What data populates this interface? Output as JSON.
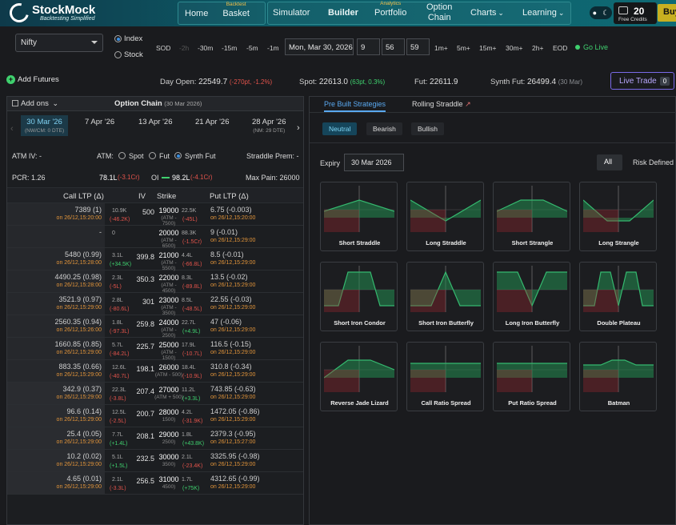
{
  "nav": {
    "brand": "StockMock",
    "tagline": "Backtesting Simplified",
    "home": "Home",
    "basket": "Basket",
    "basket_sup": "Backtest",
    "simulator": "Simulator",
    "builder": "Builder",
    "portfolio": "Portfolio",
    "portfolio_sup": "Analytics",
    "option_chain_1": "Option",
    "option_chain_2": "Chain",
    "charts": "Charts",
    "learning": "Learning",
    "credits_num": "20",
    "credits_label": "Free Credits",
    "buy": "Buy"
  },
  "controls": {
    "instrument": "Nifty",
    "index": "Index",
    "stock": "Stock",
    "sod": "SOD",
    "m2h": "-2h",
    "m30": "-30m",
    "m15": "-15m",
    "m5": "-5m",
    "m1": "-1m",
    "date": "Mon, Mar 30, 2026",
    "hh": "9",
    "mm": "56",
    "ss": "59",
    "p1": "1m+",
    "p5": "5m+",
    "p15": "15m+",
    "p30": "30m+",
    "p2h": "2h+",
    "eod": "EOD",
    "golive": "Go Live"
  },
  "info": {
    "add_futures": "Add Futures",
    "day_open_k": "Day Open:",
    "day_open_v": "22549.7",
    "day_open_c": "(-270pt, -1.2%)",
    "spot_k": "Spot:",
    "spot_v": "22613.0",
    "spot_c": "(63pt, 0.3%)",
    "fut_k": "Fut:",
    "fut_v": "22611.9",
    "synth_k": "Synth Fut:",
    "synth_v": "26499.4",
    "synth_c": "(30 Mar)",
    "live_trade": "Live Trade",
    "live_count": "0"
  },
  "chain": {
    "add_ons": "Add ons",
    "title": "Option Chain",
    "title_date": "(30 Mar 2026)",
    "expiries": [
      {
        "label": "30 Mar '26",
        "sub": "(NW/CM: 0 DTE)"
      },
      {
        "label": "7 Apr '26",
        "sub": ""
      },
      {
        "label": "13 Apr '26",
        "sub": ""
      },
      {
        "label": "21 Apr '26",
        "sub": ""
      },
      {
        "label": "28 Apr '26",
        "sub": "(NM: 29 DTE)"
      }
    ],
    "atm_iv": "ATM IV: -",
    "atm": "ATM:",
    "spot": "Spot",
    "fut": "Fut",
    "synth": "Synth Fut",
    "straddle": "Straddle Prem: -",
    "pcr": "PCR: 1.26",
    "oi_call": "78.1L",
    "oi_call_c": "(-3.1Cr)",
    "oi_lbl": "OI",
    "oi_put": "98.2L",
    "oi_put_c": "(-4.1Cr)",
    "maxpain": "Max Pain: 26000",
    "h_call": "Call LTP (Δ)",
    "h_iv": "IV",
    "h_strike": "Strike",
    "h_put": "Put LTP (Δ)",
    "rows": [
      {
        "call": "7389 (1)",
        "ct": "on 26/12,15:20:00",
        "coi": "10.9K",
        "coic": "(-46.2K)",
        "iv": "500",
        "strike": "19000",
        "ssub": "(ATM - 7500)",
        "poi": "22.5K",
        "poic": "(-45L)",
        "put": "6.75 (-0.003)",
        "pt": "on 26/12,15:20:00"
      },
      {
        "call": "-",
        "ct": "",
        "coi": "0",
        "coic": "",
        "iv": "",
        "strike": "20000",
        "ssub": "(ATM - 6500)",
        "poi": "88.3K",
        "poic": "(-1.5Cr)",
        "put": "9 (-0.01)",
        "pt": "on 26/12,15:29:00"
      },
      {
        "call": "5480 (0.99)",
        "ct": "on 26/12,15:28:00",
        "coi": "3.1L",
        "coic": "(+34.5K)",
        "iv": "399.8",
        "strike": "21000",
        "ssub": "(ATM - 5500)",
        "poi": "4.4L",
        "poic": "(-66.8L)",
        "put": "8.5 (-0.01)",
        "pt": "on 26/12,15:29:00"
      },
      {
        "call": "4490.25 (0.98)",
        "ct": "on 26/12,15:28:00",
        "coi": "2.3L",
        "coic": "(-5L)",
        "iv": "350.3",
        "strike": "22000",
        "ssub": "(ATM - 4500)",
        "poi": "8.3L",
        "poic": "(-89.8L)",
        "put": "13.5 (-0.02)",
        "pt": "on 26/12,15:29:00"
      },
      {
        "call": "3521.9 (0.97)",
        "ct": "on 26/12,15:29:00",
        "coi": "2.8L",
        "coic": "(-80.6L)",
        "iv": "301",
        "strike": "23000",
        "ssub": "(ATM - 3500)",
        "poi": "8.5L",
        "poic": "(-48.5L)",
        "put": "22.55 (-0.03)",
        "pt": "on 26/12,15:29:00"
      },
      {
        "call": "2560.35 (0.94)",
        "ct": "on 26/12,15:26:00",
        "coi": "1.8L",
        "coic": "(-97.3L)",
        "iv": "259.8",
        "strike": "24000",
        "ssub": "(ATM - 2500)",
        "poi": "22.7L",
        "poic": "(+4.9L)",
        "put": "47 (-0.06)",
        "pt": "on 26/12,15:29:00"
      },
      {
        "call": "1660.85 (0.85)",
        "ct": "on 26/12,15:29:00",
        "coi": "5.7L",
        "coic": "(-84.2L)",
        "iv": "225.7",
        "strike": "25000",
        "ssub": "(ATM - 1500)",
        "poi": "17.9L",
        "poic": "(-10.7L)",
        "put": "116.5 (-0.15)",
        "pt": "on 26/12,15:29:00"
      },
      {
        "call": "883.35 (0.66)",
        "ct": "on 26/12,15:29:00",
        "coi": "12.6L",
        "coic": "(-40.7L)",
        "iv": "198.1",
        "strike": "26000",
        "ssub": "(ATM - 500)",
        "poi": "18.4L",
        "poic": "(-10.9L)",
        "put": "310.8 (-0.34)",
        "pt": "on 26/12,15:29:00"
      },
      {
        "call": "342.9 (0.37)",
        "ct": "on 26/12,15:29:00",
        "coi": "22.3L",
        "coic": "(-3.8L)",
        "iv": "207.4",
        "strike": "27000",
        "ssub": "(ATM + 500)",
        "poi": "11.2L",
        "poic": "(+3.3L)",
        "put": "743.85 (-0.63)",
        "pt": "on 26/12,15:29:00"
      },
      {
        "call": "96.6 (0.14)",
        "ct": "on 26/12,15:29:00",
        "coi": "12.5L",
        "coic": "(-2.5L)",
        "iv": "200.7",
        "strike": "28000",
        "ssub": "1500)",
        "poi": "4.2L",
        "poic": "(-31.9K)",
        "put": "1472.05 (-0.86)",
        "pt": "on 26/12,15:29:00"
      },
      {
        "call": "25.4 (0.05)",
        "ct": "on 26/12,15:29:00",
        "coi": "7.7L",
        "coic": "(+1.4L)",
        "iv": "208.1",
        "strike": "29000",
        "ssub": "2500)",
        "poi": "1.8L",
        "poic": "(+43.8K)",
        "put": "2379.3 (-0.95)",
        "pt": "on 26/12,15:27:00"
      },
      {
        "call": "10.2 (0.02)",
        "ct": "on 26/12,15:29:00",
        "coi": "5.1L",
        "coic": "(+1.5L)",
        "iv": "232.5",
        "strike": "30000",
        "ssub": "3500)",
        "poi": "2.1L",
        "poic": "(-23.4K)",
        "put": "3325.95 (-0.98)",
        "pt": "on 26/12,15:29:00"
      },
      {
        "call": "4.65 (0.01)",
        "ct": "on 26/12,15:29:00",
        "coi": "2.1L",
        "coic": "(-3.3L)",
        "iv": "256.5",
        "strike": "31000",
        "ssub": "4500)",
        "poi": "1.7L",
        "poic": "(+75K)",
        "put": "4312.65 (-0.99)",
        "pt": "on 26/12,15:29:00"
      }
    ]
  },
  "strategies": {
    "tab_prebuilt": "Pre Built Strategies",
    "tab_rolling": "Rolling Straddle",
    "neutral": "Neutral",
    "bearish": "Bearish",
    "bullish": "Bullish",
    "expiry_label": "Expiry",
    "expiry_value": "30 Mar 2026",
    "all": "All",
    "risk_defined": "Risk Defined",
    "cards": [
      "Short Straddle",
      "Long Straddle",
      "Short Strangle",
      "Long Strangle",
      "Short Iron Condor",
      "Short Iron Butterfly",
      "Long Iron Butterfly",
      "Double Plateau",
      "Reverse Jade Lizard",
      "Call Ratio Spread",
      "Put Ratio Spread",
      "Batman"
    ]
  }
}
